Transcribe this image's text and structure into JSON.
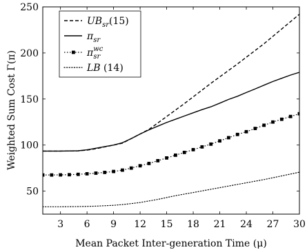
{
  "chart_data": {
    "type": "line",
    "xlabel": "Mean Packet Inter-generation Time (μ)",
    "ylabel": "Weighted Sum Cost Γ(π)",
    "xlim": [
      1,
      30
    ],
    "ylim": [
      25,
      250
    ],
    "xticks": [
      3,
      6,
      9,
      12,
      15,
      18,
      21,
      24,
      27,
      30
    ],
    "yticks": [
      50,
      100,
      150,
      200,
      250
    ],
    "grid": false,
    "legend_position": "top-left",
    "series": [
      {
        "name": "UB_sr (15)",
        "legend": {
          "main": "UB",
          "sub": "sr",
          "sup": "",
          "suffix": "(15)"
        },
        "style": "dashed",
        "color": "#000000",
        "x": [
          1,
          3,
          5,
          6,
          7,
          8,
          9,
          10,
          11,
          12,
          13,
          14,
          15,
          17,
          20,
          23,
          26,
          30
        ],
        "y": [
          93.5,
          93.5,
          93.7,
          94.5,
          96,
          98,
          100,
          102,
          107,
          112,
          117,
          124,
          131,
          145,
          167,
          188,
          210,
          242
        ]
      },
      {
        "name": "π_sr",
        "legend": {
          "main": "π",
          "sub": "sr",
          "sup": "",
          "suffix": ""
        },
        "style": "solid",
        "color": "#000000",
        "x": [
          1,
          3,
          5,
          6,
          7,
          8,
          9,
          10,
          11,
          12,
          13,
          14,
          15,
          16,
          17,
          18,
          19,
          20,
          21,
          22,
          23,
          24,
          25,
          26,
          27,
          28,
          29,
          30
        ],
        "y": [
          93.5,
          93.5,
          93.8,
          94.8,
          96.5,
          98.3,
          100,
          102.5,
          107,
          112,
          116.5,
          120.5,
          124.5,
          128,
          131.5,
          135,
          138.5,
          141.5,
          145.5,
          149.5,
          153,
          157,
          161,
          165,
          169,
          172.5,
          176,
          179
        ]
      },
      {
        "name": "π_sr^wc",
        "legend": {
          "main": "π",
          "sub": "sr",
          "sup": "wc",
          "suffix": ""
        },
        "style": "dotted-square",
        "color": "#000000",
        "x": [
          1,
          2,
          3,
          4,
          5,
          6,
          7,
          8,
          9,
          10,
          11,
          12,
          13,
          14,
          15,
          16,
          17,
          18,
          19,
          20,
          21,
          22,
          23,
          24,
          25,
          26,
          27,
          28,
          29,
          30
        ],
        "y": [
          67.5,
          67.5,
          67.6,
          67.8,
          68.2,
          68.8,
          69.5,
          70.3,
          71.3,
          72.8,
          75,
          77.5,
          80,
          83,
          86,
          89,
          92,
          95,
          98,
          101,
          104.5,
          108,
          111.5,
          114.5,
          118,
          121.5,
          125,
          128,
          131,
          134
        ]
      },
      {
        "name": "LB (14)",
        "legend": {
          "main": "LB",
          "sub": "",
          "sup": "",
          "suffix": "(14)"
        },
        "style": "dotted",
        "color": "#000000",
        "x": [
          1,
          3,
          5,
          6,
          7,
          8,
          9,
          10,
          11,
          12,
          14,
          16,
          18,
          20,
          22,
          24,
          26,
          28,
          30
        ],
        "y": [
          33,
          33,
          33.2,
          33.4,
          33.7,
          34.1,
          34.6,
          35.4,
          36.4,
          37.6,
          41,
          45,
          48.5,
          52,
          55.5,
          59,
          62.5,
          66.5,
          70.5
        ]
      }
    ]
  }
}
